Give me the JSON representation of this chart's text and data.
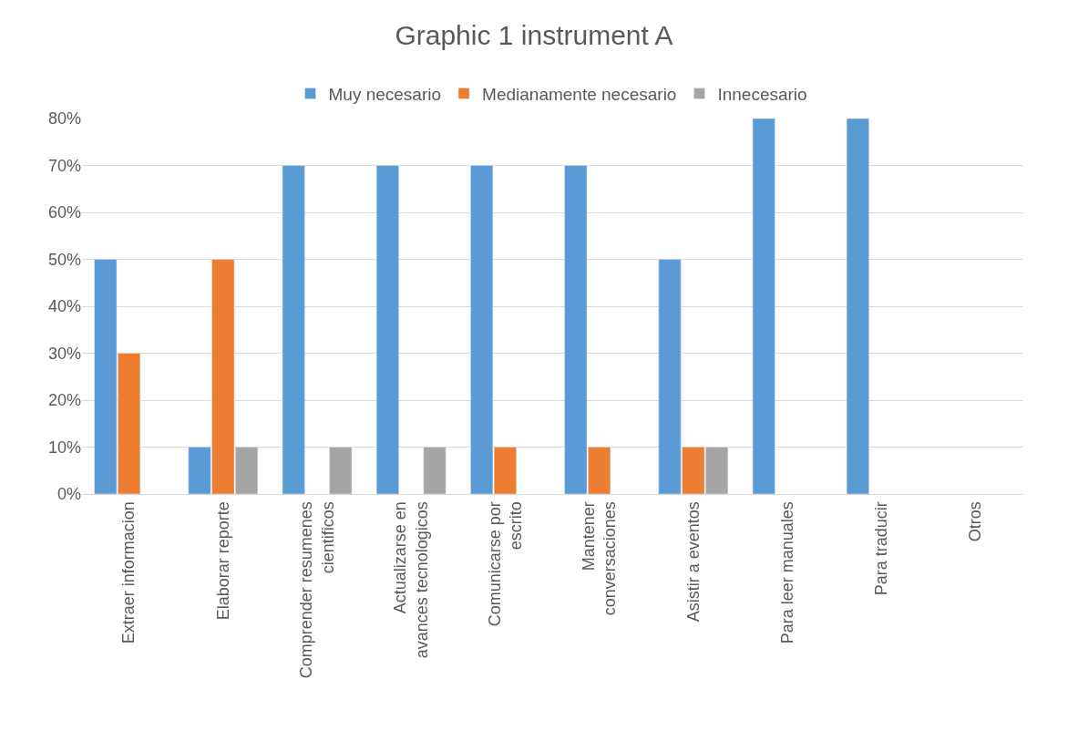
{
  "chart_data": {
    "type": "bar",
    "title": "Graphic 1 instrument A",
    "categories": [
      "Extraer informacion",
      "Elaborar reporte",
      "Comprender resumenes cientificos",
      "Actualizarse en avances tecnologicos",
      "Comunicarse por escrito",
      "Mantener conversaciones",
      "Asistir a eventos",
      "Para leer manuales",
      "Para traducir",
      "Otros"
    ],
    "series": [
      {
        "name": "Muy necesario",
        "color": "#5b9bd5",
        "values": [
          50,
          10,
          70,
          70,
          70,
          70,
          50,
          80,
          80,
          null
        ]
      },
      {
        "name": "Medianamente necesario",
        "color": "#ed7d31",
        "values": [
          30,
          50,
          null,
          null,
          10,
          10,
          10,
          null,
          null,
          null
        ]
      },
      {
        "name": "Innecesario",
        "color": "#a5a5a5",
        "values": [
          null,
          10,
          10,
          10,
          null,
          null,
          10,
          null,
          null,
          null
        ]
      }
    ],
    "ylim": [
      0,
      80
    ],
    "yticks": [
      {
        "value": 0,
        "label": "0%"
      },
      {
        "value": 10,
        "label": "10%"
      },
      {
        "value": 20,
        "label": "20%"
      },
      {
        "value": 30,
        "label": "30%"
      },
      {
        "value": 40,
        "label": "40%"
      },
      {
        "value": 50,
        "label": "50%"
      },
      {
        "value": 60,
        "label": "60%"
      },
      {
        "value": 70,
        "label": "70%"
      },
      {
        "value": 80,
        "label": "80%"
      }
    ],
    "grid": "y",
    "legend": "top"
  }
}
